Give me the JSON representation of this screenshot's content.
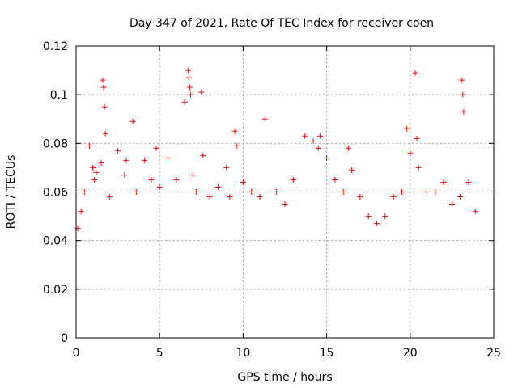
{
  "chart_data": {
    "type": "scatter",
    "title": "Day 347 of 2021, Rate Of TEC Index for receiver coen",
    "xlabel": "GPS time / hours",
    "ylabel": "ROTI / TECUs",
    "xlim": [
      0,
      25
    ],
    "ylim": [
      0,
      0.12
    ],
    "xticks": [
      0,
      5,
      10,
      15,
      20,
      25
    ],
    "yticks": [
      0,
      0.02,
      0.04,
      0.06,
      0.08,
      0.1,
      0.12
    ],
    "xtick_labels": [
      "0",
      "5",
      "10",
      "15",
      "20",
      "25"
    ],
    "ytick_labels": [
      "0",
      "0.02",
      "0.04",
      "0.06",
      "0.08",
      "0.1",
      "0.12"
    ],
    "grid": true,
    "marker": "+",
    "color": "#ff0000",
    "series": [
      {
        "x": [
          0.1,
          0.3,
          0.5,
          0.8,
          1.0,
          1.1,
          1.2,
          1.5,
          1.6,
          1.65,
          1.7,
          1.75,
          2.0,
          2.5,
          2.9,
          3.0,
          3.4,
          3.6,
          4.1,
          4.5,
          4.8,
          5.0,
          5.5,
          6.0,
          6.5,
          6.7,
          6.75,
          6.8,
          6.85,
          7.0,
          7.2,
          7.5,
          7.6,
          8.0,
          8.5,
          9.0,
          9.2,
          9.5,
          9.6,
          10.0,
          10.5,
          11.0,
          11.3,
          12.0,
          12.5,
          13.0,
          13.7,
          14.2,
          14.5,
          14.6,
          15.0,
          15.5,
          16.0,
          16.3,
          16.5,
          17.0,
          17.5,
          18.0,
          18.5,
          19.0,
          19.5,
          19.8,
          20.0,
          20.3,
          20.4,
          20.5,
          21.0,
          21.5,
          22.0,
          22.5,
          23.0,
          23.1,
          23.15,
          23.2,
          23.5,
          23.9
        ],
        "y": [
          0.045,
          0.052,
          0.06,
          0.079,
          0.07,
          0.065,
          0.068,
          0.072,
          0.106,
          0.103,
          0.095,
          0.084,
          0.058,
          0.077,
          0.067,
          0.073,
          0.089,
          0.06,
          0.073,
          0.065,
          0.078,
          0.062,
          0.074,
          0.065,
          0.097,
          0.11,
          0.107,
          0.103,
          0.1,
          0.067,
          0.06,
          0.101,
          0.075,
          0.058,
          0.062,
          0.07,
          0.058,
          0.085,
          0.079,
          0.064,
          0.06,
          0.058,
          0.09,
          0.06,
          0.055,
          0.065,
          0.083,
          0.081,
          0.078,
          0.083,
          0.074,
          0.065,
          0.06,
          0.078,
          0.069,
          0.058,
          0.05,
          0.047,
          0.05,
          0.058,
          0.06,
          0.086,
          0.076,
          0.109,
          0.082,
          0.07,
          0.06,
          0.06,
          0.064,
          0.055,
          0.058,
          0.106,
          0.1,
          0.093,
          0.064,
          0.052
        ]
      }
    ]
  }
}
